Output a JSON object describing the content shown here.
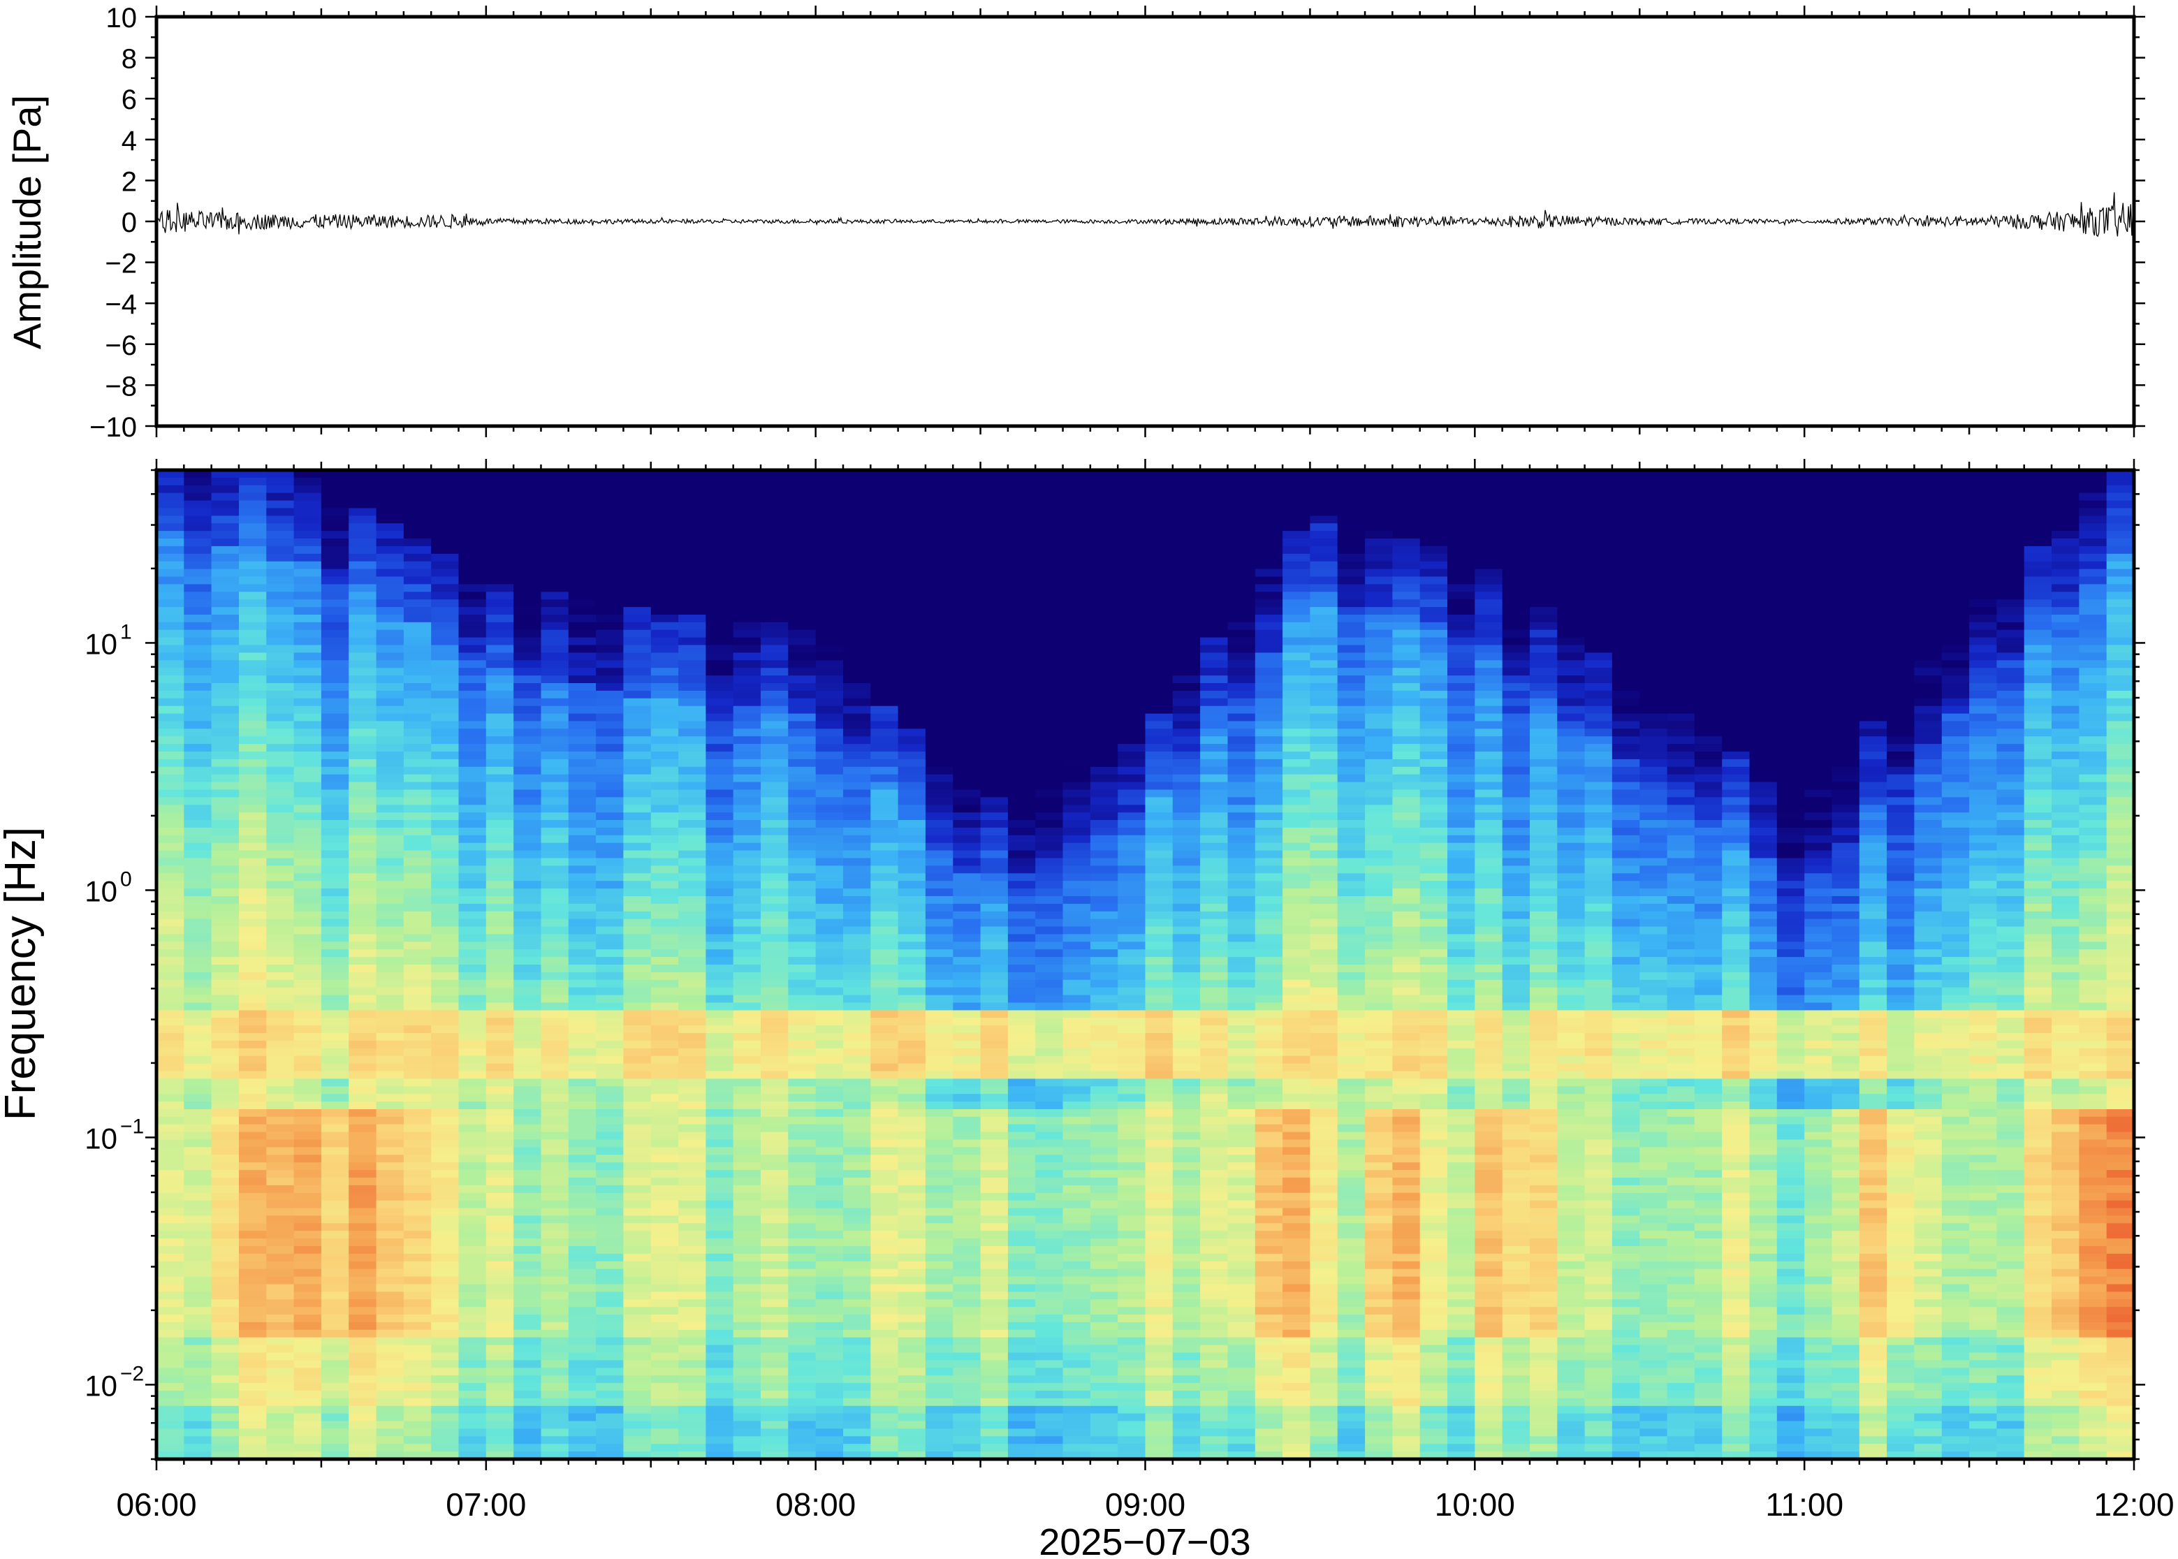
{
  "chart_data": [
    {
      "type": "line",
      "panel": "waveform",
      "ylabel": "Amplitude [Pa]",
      "ylim": [
        -10,
        10
      ],
      "yticks": [
        "10",
        "8",
        "6",
        "4",
        "2",
        "0",
        "−2",
        "−4",
        "−6",
        "−8",
        "−10"
      ],
      "ytick_values": [
        10,
        8,
        6,
        4,
        2,
        0,
        -2,
        -4,
        -6,
        -8,
        -10
      ],
      "grid": false,
      "line_color": "#000000",
      "envelope": {
        "x_hours": [
          6.0,
          6.2,
          6.4,
          6.6,
          6.8,
          6.9,
          7.0,
          7.5,
          8.0,
          8.5,
          9.0,
          9.3,
          9.5,
          9.8,
          10.0,
          10.2,
          10.5,
          11.0,
          11.3,
          11.6,
          11.8,
          12.0
        ],
        "amplitude_pa": [
          0.6,
          0.45,
          0.35,
          0.35,
          0.3,
          0.35,
          0.15,
          0.1,
          0.1,
          0.08,
          0.1,
          0.2,
          0.25,
          0.3,
          0.2,
          0.35,
          0.15,
          0.1,
          0.2,
          0.3,
          0.5,
          1.0
        ]
      }
    },
    {
      "type": "heatmap",
      "panel": "spectrogram",
      "ylabel": "Frequency [Hz]",
      "xlabel": "2025−07−03",
      "yscale": "log",
      "ylim_hz": [
        0.005,
        50
      ],
      "yticks": [
        {
          "base": "10",
          "exp": "1",
          "value": 10
        },
        {
          "base": "10",
          "exp": "0",
          "value": 1
        },
        {
          "base": "10",
          "exp": "−1",
          "value": 0.1
        },
        {
          "base": "10",
          "exp": "−2",
          "value": 0.01
        }
      ],
      "xticks": [
        "06:00",
        "07:00",
        "08:00",
        "09:00",
        "10:00",
        "11:00",
        "12:00"
      ],
      "xlim_hours": [
        6,
        12
      ],
      "colormap": [
        "#0d0073",
        "#1428c8",
        "#2870f0",
        "#3cb4f5",
        "#64e6dc",
        "#b4f09a",
        "#f5f08c",
        "#fad278",
        "#f5a050",
        "#eb5a2d",
        "#c81e1e"
      ],
      "grid": false,
      "time_hours": [
        6.0,
        6.5,
        7.0,
        7.5,
        8.0,
        8.5,
        9.0,
        9.5,
        10.0,
        10.5,
        11.0,
        11.5,
        12.0
      ],
      "blue_edge_hz": [
        30,
        20,
        8,
        6,
        5,
        1,
        2,
        15,
        10,
        3,
        1,
        6,
        25
      ]
    }
  ]
}
